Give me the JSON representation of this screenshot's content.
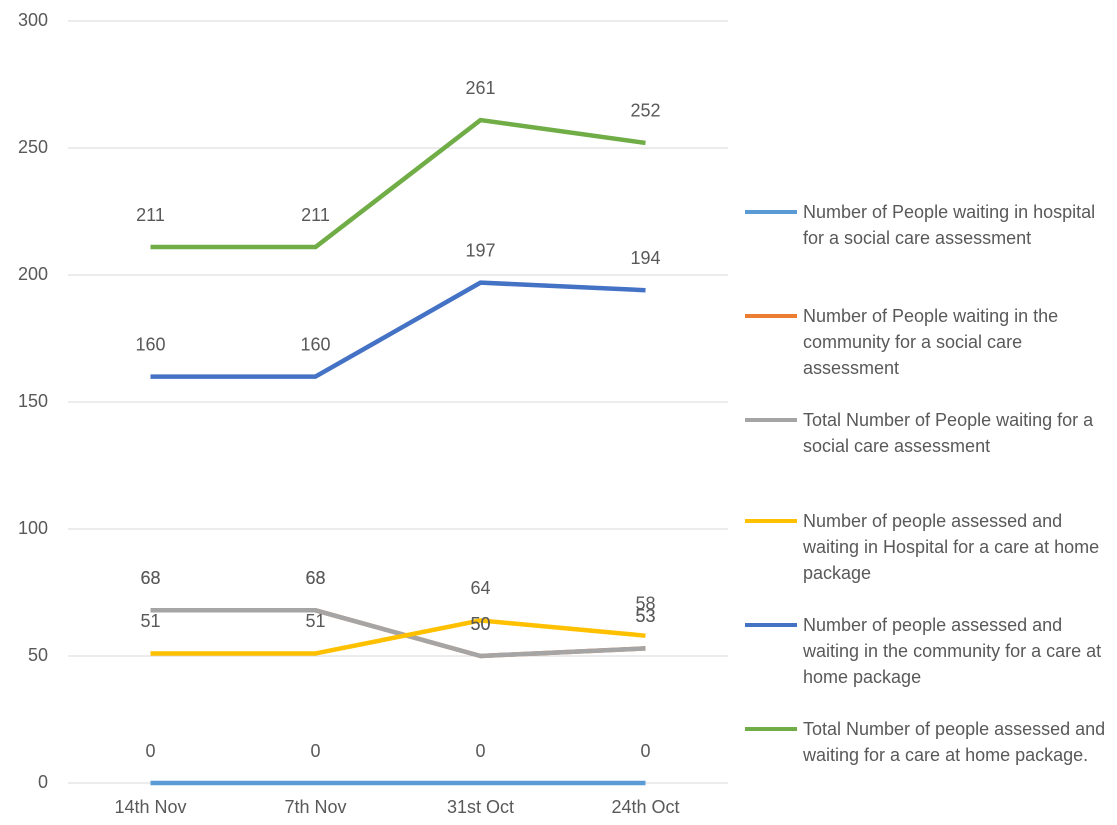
{
  "chart_data": {
    "type": "line",
    "categories": [
      "14th Nov",
      "7th Nov",
      "31st Oct",
      "24th Oct"
    ],
    "series": [
      {
        "name": "Number of People waiting in hospital for a social care assessment",
        "color": "#5b9bd5",
        "values": [
          0,
          0,
          0,
          0
        ]
      },
      {
        "name": "Number of People waiting in the community for a social care assessment",
        "color": "#ed7d31",
        "values": [
          68,
          68,
          50,
          53
        ]
      },
      {
        "name": "Total Number of People waiting for a social care assessment",
        "color": "#a5a5a5",
        "values": [
          68,
          68,
          50,
          53
        ]
      },
      {
        "name": "Number of people assessed and waiting in Hospital for a care at home package",
        "color": "#ffc000",
        "values": [
          51,
          51,
          64,
          58
        ]
      },
      {
        "name": "Number of people assessed and waiting in the community for a care at home package",
        "color": "#4472c4",
        "values": [
          160,
          160,
          197,
          194
        ]
      },
      {
        "name": "Total Number of people assessed and waiting for a care at home package.",
        "color": "#70ad47",
        "values": [
          211,
          211,
          261,
          252
        ]
      }
    ],
    "ylim": [
      0,
      300
    ],
    "yticks": [
      0,
      50,
      100,
      150,
      200,
      250,
      300
    ],
    "grid": true,
    "legend": "right"
  }
}
